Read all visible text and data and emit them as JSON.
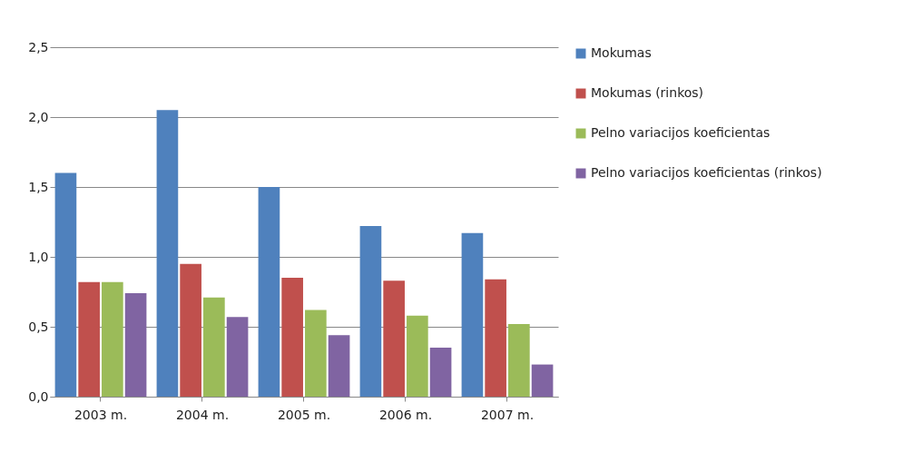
{
  "chart_data": {
    "type": "bar",
    "categories": [
      "2003 m.",
      "2004 m.",
      "2005 m.",
      "2006 m.",
      "2007 m."
    ],
    "series": [
      {
        "name": "Mokumas",
        "color": "#4f81bd",
        "values": [
          1.6,
          2.05,
          1.5,
          1.22,
          1.17
        ]
      },
      {
        "name": "Mokumas (rinkos)",
        "color": "#c0504d",
        "values": [
          0.82,
          0.95,
          0.85,
          0.83,
          0.84
        ]
      },
      {
        "name": "Pelno variacijos koeficientas",
        "color": "#9bbb59",
        "values": [
          0.82,
          0.71,
          0.62,
          0.58,
          0.52
        ]
      },
      {
        "name": "Pelno variacijos koeficientas (rinkos)",
        "color": "#8064a2",
        "values": [
          0.74,
          0.57,
          0.44,
          0.35,
          0.23
        ]
      }
    ],
    "ylim": [
      0,
      2.5
    ],
    "yticks": [
      {
        "value": 0,
        "label": "0,0"
      },
      {
        "value": 0.5,
        "label": "0,5"
      },
      {
        "value": 1,
        "label": "1,0"
      },
      {
        "value": 1.5,
        "label": "1,5"
      },
      {
        "value": 2,
        "label": "2,0"
      },
      {
        "value": 2.5,
        "label": "2,5"
      }
    ],
    "grid": "y",
    "legend": "right"
  }
}
